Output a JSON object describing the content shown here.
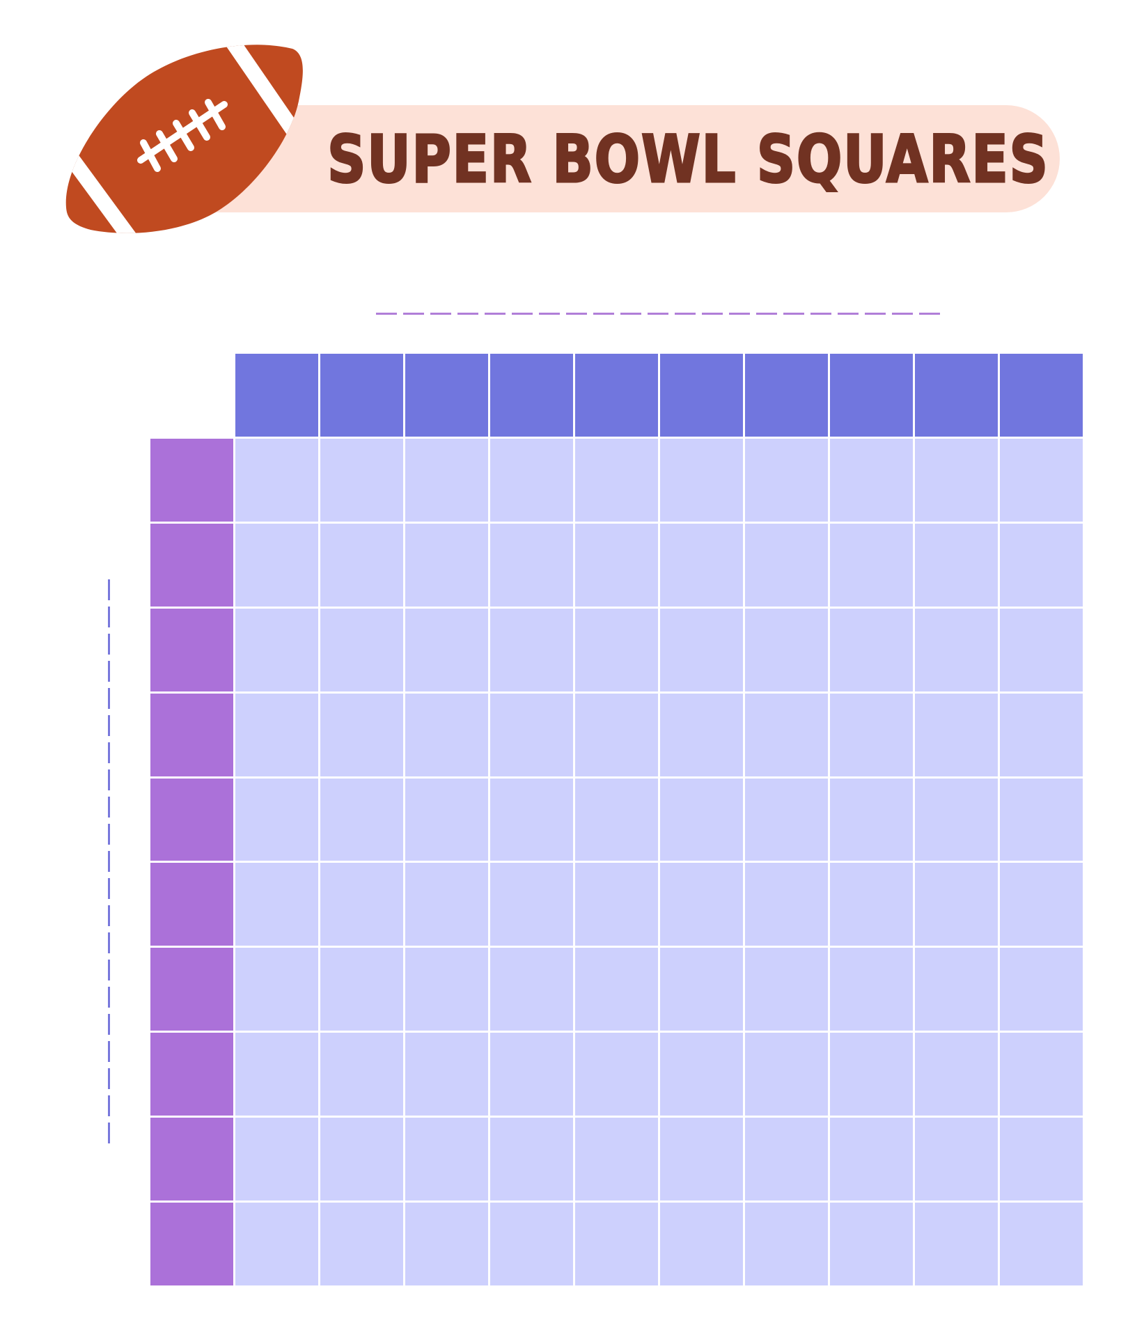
{
  "header": {
    "title": "SUPER BOWL SQUARES",
    "icon": "football-icon",
    "banner_color": "#fde1d7",
    "title_color": "#713222",
    "football_color": "#c04a20"
  },
  "team_lines": {
    "top_team_name": "",
    "left_team_name": "",
    "top_line_color": "#b07ed8",
    "left_line_color": "#7878dc"
  },
  "grid": {
    "rows": 10,
    "columns": 10,
    "column_headers": [
      "",
      "",
      "",
      "",
      "",
      "",
      "",
      "",
      "",
      ""
    ],
    "row_headers": [
      "",
      "",
      "",
      "",
      "",
      "",
      "",
      "",
      "",
      ""
    ],
    "colors": {
      "column_header": "#7176de",
      "row_header": "#ab71d9",
      "cell": "#cdd0fd"
    }
  }
}
